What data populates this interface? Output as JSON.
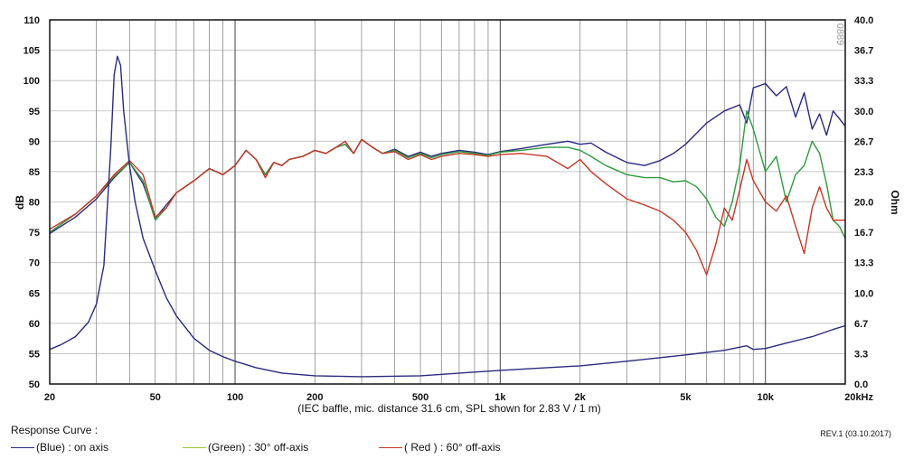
{
  "chart_data": {
    "type": "line",
    "x_scale": "log",
    "xlim": [
      20,
      20000
    ],
    "x_ticks": [
      {
        "value": 20,
        "label": "20"
      },
      {
        "value": 50,
        "label": "50"
      },
      {
        "value": 100,
        "label": "100"
      },
      {
        "value": 200,
        "label": "200"
      },
      {
        "value": 500,
        "label": "500"
      },
      {
        "value": 1000,
        "label": "1k"
      },
      {
        "value": 2000,
        "label": "2k"
      },
      {
        "value": 5000,
        "label": "5k"
      },
      {
        "value": 10000,
        "label": "10k"
      },
      {
        "value": 20000,
        "label": "20kHz"
      }
    ],
    "x_minor_grid": [
      30,
      40,
      50,
      60,
      70,
      80,
      90,
      100,
      200,
      300,
      400,
      500,
      600,
      700,
      800,
      900,
      1000,
      2000,
      3000,
      4000,
      5000,
      6000,
      7000,
      8000,
      9000,
      10000
    ],
    "ylabel": "dB",
    "ylim": [
      50,
      110
    ],
    "y_ticks": [
      50,
      55,
      60,
      65,
      70,
      75,
      80,
      85,
      90,
      95,
      100,
      105,
      110
    ],
    "y2label": "Ohm",
    "y2lim": [
      0,
      40
    ],
    "y2_ticks": [
      "0.0",
      "3.3",
      "6.7",
      "10.0",
      "13.3",
      "16.7",
      "20.0",
      "23.3",
      "26.7",
      "30.0",
      "33.3",
      "36.7",
      "40.0"
    ],
    "grid": true,
    "watermark": "0889",
    "caption": "(IEC baffle, mic. distance 31.6 cm, SPL shown for 2.83 V / 1 m)",
    "series": [
      {
        "name": "on axis (SPL)",
        "color": "#2b2a7e",
        "axis": "left",
        "points": [
          [
            20,
            74.8
          ],
          [
            25,
            77.5
          ],
          [
            30,
            80.5
          ],
          [
            35,
            84
          ],
          [
            40,
            86.5
          ],
          [
            45,
            83
          ],
          [
            50,
            77.3
          ],
          [
            55,
            79.5
          ],
          [
            60,
            81.5
          ],
          [
            70,
            83.5
          ],
          [
            80,
            85.5
          ],
          [
            90,
            84.5
          ],
          [
            100,
            86
          ],
          [
            110,
            88.5
          ],
          [
            120,
            87
          ],
          [
            130,
            84.5
          ],
          [
            140,
            86.5
          ],
          [
            150,
            86
          ],
          [
            160,
            87
          ],
          [
            180,
            87.5
          ],
          [
            200,
            88.5
          ],
          [
            220,
            88
          ],
          [
            240,
            89
          ],
          [
            260,
            89.5
          ],
          [
            280,
            88
          ],
          [
            300,
            90.3
          ],
          [
            330,
            89
          ],
          [
            360,
            88
          ],
          [
            400,
            88.7
          ],
          [
            450,
            87.5
          ],
          [
            500,
            88.2
          ],
          [
            550,
            87.5
          ],
          [
            600,
            88
          ],
          [
            700,
            88.5
          ],
          [
            800,
            88.2
          ],
          [
            900,
            87.8
          ],
          [
            1000,
            88.3
          ],
          [
            1200,
            88.8
          ],
          [
            1500,
            89.5
          ],
          [
            1800,
            90
          ],
          [
            2000,
            89.5
          ],
          [
            2200,
            89.7
          ],
          [
            2500,
            88.2
          ],
          [
            3000,
            86.5
          ],
          [
            3500,
            86
          ],
          [
            4000,
            86.8
          ],
          [
            4500,
            88
          ],
          [
            5000,
            89.5
          ],
          [
            6000,
            93
          ],
          [
            7000,
            95
          ],
          [
            8000,
            96
          ],
          [
            8500,
            93
          ],
          [
            9000,
            98.8
          ],
          [
            10000,
            99.5
          ],
          [
            11000,
            97.5
          ],
          [
            12000,
            99
          ],
          [
            13000,
            94
          ],
          [
            14000,
            98
          ],
          [
            15000,
            92
          ],
          [
            16000,
            94.5
          ],
          [
            17000,
            91
          ],
          [
            18000,
            95
          ],
          [
            20000,
            92.5
          ]
        ]
      },
      {
        "name": "30° off-axis",
        "color": "#2e9a3d",
        "axis": "left",
        "points": [
          [
            20,
            75
          ],
          [
            25,
            78
          ],
          [
            30,
            81
          ],
          [
            35,
            84.2
          ],
          [
            40,
            86.5
          ],
          [
            45,
            83.5
          ],
          [
            50,
            77
          ],
          [
            55,
            79
          ],
          [
            60,
            81.5
          ],
          [
            70,
            83.5
          ],
          [
            80,
            85.5
          ],
          [
            90,
            84.5
          ],
          [
            100,
            86
          ],
          [
            110,
            88.5
          ],
          [
            120,
            87
          ],
          [
            130,
            84.5
          ],
          [
            140,
            86.5
          ],
          [
            150,
            86
          ],
          [
            160,
            87
          ],
          [
            180,
            87.5
          ],
          [
            200,
            88.5
          ],
          [
            220,
            88
          ],
          [
            240,
            89
          ],
          [
            260,
            89.5
          ],
          [
            280,
            88
          ],
          [
            300,
            90.3
          ],
          [
            330,
            89
          ],
          [
            360,
            88
          ],
          [
            400,
            88.5
          ],
          [
            450,
            87.3
          ],
          [
            500,
            88
          ],
          [
            550,
            87.3
          ],
          [
            600,
            87.8
          ],
          [
            700,
            88.3
          ],
          [
            800,
            88
          ],
          [
            900,
            87.7
          ],
          [
            1000,
            88.2
          ],
          [
            1200,
            88.5
          ],
          [
            1500,
            89
          ],
          [
            1800,
            89
          ],
          [
            2000,
            88.5
          ],
          [
            2200,
            87.5
          ],
          [
            2500,
            86
          ],
          [
            3000,
            84.5
          ],
          [
            3500,
            84
          ],
          [
            4000,
            84
          ],
          [
            4500,
            83.3
          ],
          [
            5000,
            83.5
          ],
          [
            5500,
            82.5
          ],
          [
            6000,
            80.5
          ],
          [
            6500,
            77.5
          ],
          [
            7000,
            76
          ],
          [
            7500,
            80
          ],
          [
            8000,
            86
          ],
          [
            8500,
            95
          ],
          [
            9000,
            92
          ],
          [
            10000,
            85
          ],
          [
            11000,
            87.5
          ],
          [
            12000,
            80
          ],
          [
            13000,
            84.5
          ],
          [
            14000,
            86
          ],
          [
            15000,
            90
          ],
          [
            16000,
            88
          ],
          [
            17000,
            83
          ],
          [
            18000,
            77
          ],
          [
            19000,
            76
          ],
          [
            20000,
            74
          ]
        ]
      },
      {
        "name": "60° off-axis",
        "color": "#c93525",
        "axis": "left",
        "points": [
          [
            20,
            75.5
          ],
          [
            25,
            78
          ],
          [
            30,
            81
          ],
          [
            35,
            84.5
          ],
          [
            40,
            86.8
          ],
          [
            45,
            84.5
          ],
          [
            50,
            77.5
          ],
          [
            55,
            79
          ],
          [
            60,
            81.5
          ],
          [
            70,
            83.5
          ],
          [
            80,
            85.5
          ],
          [
            90,
            84.5
          ],
          [
            100,
            86
          ],
          [
            110,
            88.5
          ],
          [
            120,
            87
          ],
          [
            130,
            84
          ],
          [
            140,
            86.5
          ],
          [
            150,
            86
          ],
          [
            160,
            87
          ],
          [
            180,
            87.5
          ],
          [
            200,
            88.5
          ],
          [
            220,
            88
          ],
          [
            240,
            89
          ],
          [
            260,
            90
          ],
          [
            280,
            88
          ],
          [
            300,
            90.3
          ],
          [
            330,
            89
          ],
          [
            360,
            88
          ],
          [
            400,
            88.3
          ],
          [
            450,
            87
          ],
          [
            500,
            87.8
          ],
          [
            550,
            87
          ],
          [
            600,
            87.5
          ],
          [
            700,
            88
          ],
          [
            800,
            87.8
          ],
          [
            900,
            87.5
          ],
          [
            1000,
            87.8
          ],
          [
            1200,
            88
          ],
          [
            1500,
            87.5
          ],
          [
            1800,
            85.5
          ],
          [
            2000,
            87
          ],
          [
            2200,
            85
          ],
          [
            2500,
            83
          ],
          [
            3000,
            80.5
          ],
          [
            3500,
            79.5
          ],
          [
            4000,
            78.5
          ],
          [
            4500,
            77
          ],
          [
            5000,
            75
          ],
          [
            5500,
            72
          ],
          [
            6000,
            68
          ],
          [
            6500,
            73
          ],
          [
            7000,
            79
          ],
          [
            7500,
            77
          ],
          [
            8000,
            82
          ],
          [
            8500,
            87
          ],
          [
            9000,
            83.5
          ],
          [
            10000,
            80
          ],
          [
            11000,
            78.5
          ],
          [
            12000,
            81
          ],
          [
            13000,
            76
          ],
          [
            14000,
            71.5
          ],
          [
            15000,
            79
          ],
          [
            16000,
            82.5
          ],
          [
            17000,
            79
          ],
          [
            18000,
            77
          ],
          [
            19000,
            77
          ],
          [
            20000,
            77
          ]
        ]
      },
      {
        "name": "impedance",
        "color": "#2b2a7e",
        "axis": "right",
        "points": [
          [
            20,
            3.8
          ],
          [
            22,
            4.3
          ],
          [
            25,
            5.2
          ],
          [
            28,
            6.8
          ],
          [
            30,
            8.8
          ],
          [
            32,
            13
          ],
          [
            34,
            26
          ],
          [
            35,
            34
          ],
          [
            36,
            36
          ],
          [
            37,
            35
          ],
          [
            38,
            30
          ],
          [
            40,
            24
          ],
          [
            42,
            20
          ],
          [
            45,
            16
          ],
          [
            50,
            12.5
          ],
          [
            55,
            9.5
          ],
          [
            60,
            7.5
          ],
          [
            70,
            5
          ],
          [
            80,
            3.7
          ],
          [
            90,
            3
          ],
          [
            100,
            2.5
          ],
          [
            120,
            1.8
          ],
          [
            150,
            1.2
          ],
          [
            200,
            0.9
          ],
          [
            300,
            0.8
          ],
          [
            500,
            0.9
          ],
          [
            1000,
            1.5
          ],
          [
            2000,
            2
          ],
          [
            3000,
            2.5
          ],
          [
            5000,
            3.2
          ],
          [
            7000,
            3.7
          ],
          [
            8500,
            4.2
          ],
          [
            9000,
            3.8
          ],
          [
            10000,
            3.9
          ],
          [
            12000,
            4.5
          ],
          [
            15000,
            5.2
          ],
          [
            18000,
            6
          ],
          [
            20000,
            6.4
          ]
        ]
      }
    ]
  },
  "footer": {
    "title": "Response Curve :",
    "revision": "REV.1 (03.10.2017)",
    "legend": [
      {
        "label": "(Blue)  : on axis",
        "color": "#2b2a7e"
      },
      {
        "label": "(Green) : 30° off-axis",
        "color": "#9bc93a"
      },
      {
        "label": "( Red ) : 60° off-axis",
        "color": "#c93525"
      }
    ]
  }
}
